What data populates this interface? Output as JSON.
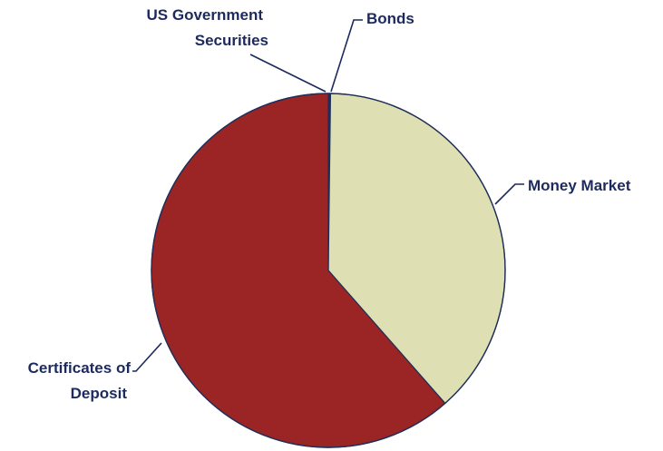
{
  "chart_data": {
    "type": "pie",
    "title": "",
    "slices": [
      {
        "label": "US Government Securities",
        "label_lines": [
          "US Government",
          "Securities"
        ],
        "value": 0.001,
        "color": "#e4e5ba"
      },
      {
        "label": "Bonds",
        "label_lines": [
          "Bonds"
        ],
        "value": 0.001,
        "color": "#e4e5ba"
      },
      {
        "label": "Money Market",
        "label_lines": [
          "Money Market"
        ],
        "value": 0.384,
        "color": "#dedfb3"
      },
      {
        "label": "Certificates of Deposit",
        "label_lines": [
          "Certificates of",
          "Deposit"
        ],
        "value": 0.616,
        "color": "#9b2424"
      }
    ],
    "start_angle_deg": 0,
    "direction": "clockwise",
    "slice_border_color": "#1f2f5a",
    "label_color": "#1c2a5e",
    "legend": "none"
  }
}
